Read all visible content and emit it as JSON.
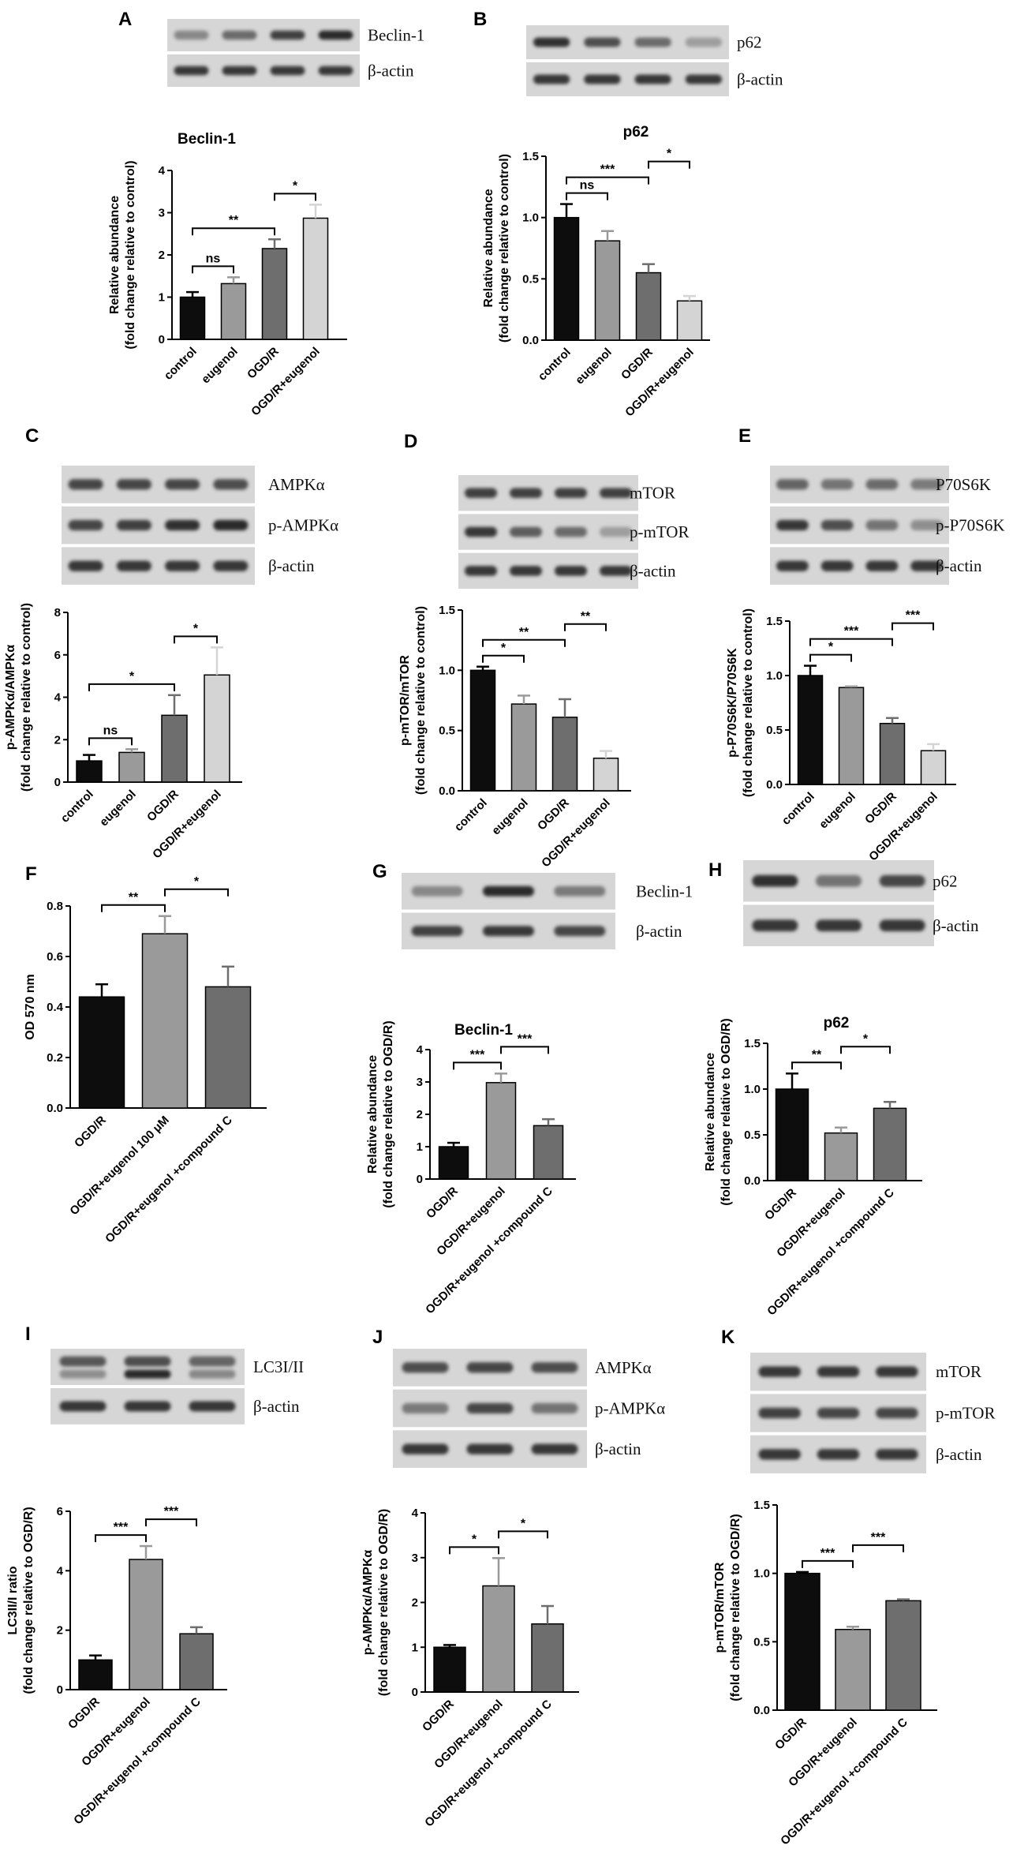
{
  "colors": {
    "bar_black": "#0d0d0d",
    "bar_mid": "#9a9a9a",
    "bar_dark": "#6e6e6e",
    "bar_light": "#d4d4d4",
    "blot_bg": "#d6d6d6",
    "band": "#2a2a2a"
  },
  "chart_data": [
    {
      "id": "A",
      "type": "bar",
      "title": "Beclin-1",
      "ylabel": [
        "Relative abundance",
        "(fold change relative to control)"
      ],
      "ylim": [
        0,
        4
      ],
      "yticks": [
        0,
        1,
        2,
        3,
        4
      ],
      "categories": [
        "control",
        "eugenol",
        "OGD/R",
        "OGD/R+eugenol"
      ],
      "values": [
        1.0,
        1.32,
        2.15,
        2.87
      ],
      "errors": [
        0.12,
        0.15,
        0.22,
        0.32
      ],
      "fills": [
        "black",
        "mid",
        "dark",
        "light"
      ],
      "brackets": [
        {
          "from": 0,
          "to": 1,
          "label": "ns"
        },
        {
          "from": 0,
          "to": 2,
          "label": "**"
        },
        {
          "from": 2,
          "to": 3,
          "label": "*"
        }
      ]
    },
    {
      "id": "B",
      "type": "bar",
      "title": "p62",
      "ylabel": [
        "Relative abundance",
        "(fold change relative to control)"
      ],
      "ylim": [
        0,
        1.5
      ],
      "yticks": [
        0.0,
        0.5,
        1.0,
        1.5
      ],
      "categories": [
        "control",
        "eugenol",
        "OGD/R",
        "OGD/R+eugenol"
      ],
      "values": [
        1.0,
        0.81,
        0.55,
        0.32
      ],
      "errors": [
        0.11,
        0.08,
        0.07,
        0.04
      ],
      "fills": [
        "black",
        "mid",
        "dark",
        "light"
      ],
      "brackets": [
        {
          "from": 0,
          "to": 1,
          "label": "ns"
        },
        {
          "from": 0,
          "to": 2,
          "label": "***"
        },
        {
          "from": 2,
          "to": 3,
          "label": "*"
        }
      ]
    },
    {
      "id": "C",
      "type": "bar",
      "title": "",
      "ylabel": [
        "p-AMPKα/AMPKα",
        "(fold change relative to control)"
      ],
      "ylim": [
        0,
        8
      ],
      "yticks": [
        0,
        2,
        4,
        6,
        8
      ],
      "categories": [
        "control",
        "eugenol",
        "OGD/R",
        "OGD/R+eugenol"
      ],
      "values": [
        1.0,
        1.4,
        3.15,
        5.05
      ],
      "errors": [
        0.28,
        0.15,
        0.95,
        1.3
      ],
      "fills": [
        "black",
        "mid",
        "dark",
        "light"
      ],
      "brackets": [
        {
          "from": 0,
          "to": 1,
          "label": "ns"
        },
        {
          "from": 0,
          "to": 2,
          "label": "*"
        },
        {
          "from": 2,
          "to": 3,
          "label": "*"
        }
      ]
    },
    {
      "id": "D",
      "type": "bar",
      "title": "",
      "ylabel": [
        "p-mTOR/mTOR",
        "(fold change relative to control)"
      ],
      "ylim": [
        0,
        1.5
      ],
      "yticks": [
        0.0,
        0.5,
        1.0,
        1.5
      ],
      "categories": [
        "control",
        "eugenol",
        "OGD/R",
        "OGD/R+eugenol"
      ],
      "values": [
        1.0,
        0.72,
        0.61,
        0.27
      ],
      "errors": [
        0.03,
        0.07,
        0.15,
        0.06
      ],
      "fills": [
        "black",
        "mid",
        "dark",
        "light"
      ],
      "brackets": [
        {
          "from": 0,
          "to": 1,
          "label": "*"
        },
        {
          "from": 0,
          "to": 2,
          "label": "**"
        },
        {
          "from": 2,
          "to": 3,
          "label": "**"
        }
      ]
    },
    {
      "id": "E",
      "type": "bar",
      "title": "",
      "ylabel": [
        "p-P70S6K/P70S6K",
        "(fold change relative to control)"
      ],
      "ylim": [
        0,
        1.5
      ],
      "yticks": [
        0.0,
        0.5,
        1.0,
        1.5
      ],
      "categories": [
        "control",
        "eugenol",
        "OGD/R",
        "OGD/R+eugenol"
      ],
      "values": [
        1.0,
        0.89,
        0.56,
        0.31
      ],
      "errors": [
        0.09,
        0.01,
        0.05,
        0.06
      ],
      "fills": [
        "black",
        "mid",
        "dark",
        "light"
      ],
      "brackets": [
        {
          "from": 0,
          "to": 1,
          "label": "*"
        },
        {
          "from": 0,
          "to": 2,
          "label": "***"
        },
        {
          "from": 2,
          "to": 3,
          "label": "***"
        }
      ]
    },
    {
      "id": "F",
      "type": "bar",
      "title": "",
      "ylabel": [
        "OD 570 nm"
      ],
      "ylim": [
        0,
        0.8
      ],
      "yticks": [
        0.0,
        0.2,
        0.4,
        0.6,
        0.8
      ],
      "categories": [
        "OGD/R",
        "OGD/R+eugenol 100 μM",
        "OGD/R+eugenol +compound C"
      ],
      "values": [
        0.44,
        0.69,
        0.48
      ],
      "errors": [
        0.05,
        0.07,
        0.08
      ],
      "fills": [
        "black",
        "mid",
        "dark"
      ],
      "brackets": [
        {
          "from": 0,
          "to": 1,
          "label": "**"
        },
        {
          "from": 1,
          "to": 2,
          "label": "*"
        }
      ]
    },
    {
      "id": "G",
      "type": "bar",
      "title": "Beclin-1",
      "ylabel": [
        "Relative abundance",
        "(fold change relative to OGD/R)"
      ],
      "ylim": [
        0,
        4
      ],
      "yticks": [
        0,
        1,
        2,
        3,
        4
      ],
      "categories": [
        "OGD/R",
        "OGD/R+eugenol",
        "OGD/R+eugenol +compound C"
      ],
      "values": [
        1.0,
        2.98,
        1.65
      ],
      "errors": [
        0.12,
        0.28,
        0.2
      ],
      "fills": [
        "black",
        "mid",
        "dark"
      ],
      "brackets": [
        {
          "from": 0,
          "to": 1,
          "label": "***"
        },
        {
          "from": 1,
          "to": 2,
          "label": "***"
        }
      ]
    },
    {
      "id": "H",
      "type": "bar",
      "title": "p62",
      "ylabel": [
        "Relative abundance",
        "(fold change relative to OGD/R)"
      ],
      "ylim": [
        0,
        1.5
      ],
      "yticks": [
        0.0,
        0.5,
        1.0,
        1.5
      ],
      "categories": [
        "OGD/R",
        "OGD/R+eugenol",
        "OGD/R+eugenol +compound C"
      ],
      "values": [
        1.0,
        0.52,
        0.79
      ],
      "errors": [
        0.17,
        0.06,
        0.07
      ],
      "fills": [
        "black",
        "mid",
        "dark"
      ],
      "brackets": [
        {
          "from": 0,
          "to": 1,
          "label": "**"
        },
        {
          "from": 1,
          "to": 2,
          "label": "*"
        }
      ]
    },
    {
      "id": "I",
      "type": "bar",
      "title": "",
      "ylabel": [
        "LC3II/I ratio",
        "(fold change relative to OGD/R)"
      ],
      "ylim": [
        0,
        6
      ],
      "yticks": [
        0,
        2,
        4,
        6
      ],
      "categories": [
        "OGD/R",
        "OGD/R+eugenol",
        "OGD/R+eugenol +compound C"
      ],
      "values": [
        1.0,
        4.38,
        1.88
      ],
      "errors": [
        0.15,
        0.45,
        0.22
      ],
      "fills": [
        "black",
        "mid",
        "dark"
      ],
      "brackets": [
        {
          "from": 0,
          "to": 1,
          "label": "***"
        },
        {
          "from": 1,
          "to": 2,
          "label": "***"
        }
      ]
    },
    {
      "id": "J",
      "type": "bar",
      "title": "",
      "ylabel": [
        "p-AMPKα/AMPKα",
        "(fold change relative to OGD/R)"
      ],
      "ylim": [
        0,
        4
      ],
      "yticks": [
        0,
        1,
        2,
        3,
        4
      ],
      "categories": [
        "OGD/R",
        "OGD/R+eugenol",
        "OGD/R+eugenol +compound C"
      ],
      "values": [
        1.0,
        2.37,
        1.52
      ],
      "errors": [
        0.05,
        0.62,
        0.4
      ],
      "fills": [
        "black",
        "mid",
        "dark"
      ],
      "brackets": [
        {
          "from": 0,
          "to": 1,
          "label": "*"
        },
        {
          "from": 1,
          "to": 2,
          "label": "*"
        }
      ]
    },
    {
      "id": "K",
      "type": "bar",
      "title": "",
      "ylabel": [
        "p-mTOR/mTOR",
        "(fold change relative to OGD/R)"
      ],
      "ylim": [
        0,
        1.5
      ],
      "yticks": [
        0.0,
        0.5,
        1.0,
        1.5
      ],
      "categories": [
        "OGD/R",
        "OGD/R+eugenol",
        "OGD/R+eugenol +compound C"
      ],
      "values": [
        1.0,
        0.59,
        0.8
      ],
      "errors": [
        0.01,
        0.02,
        0.01
      ],
      "fills": [
        "black",
        "mid",
        "dark"
      ],
      "brackets": [
        {
          "from": 0,
          "to": 1,
          "label": "***"
        },
        {
          "from": 1,
          "to": 2,
          "label": "***"
        }
      ]
    }
  ],
  "blots": [
    {
      "panel": "A",
      "rows": [
        {
          "label": "Beclin-1",
          "bands": [
            0.35,
            0.55,
            0.85,
            1.0
          ]
        },
        {
          "label": "β-actin",
          "bands": [
            0.9,
            0.9,
            0.9,
            0.9
          ]
        }
      ]
    },
    {
      "panel": "B",
      "rows": [
        {
          "label": "p62",
          "bands": [
            0.95,
            0.75,
            0.55,
            0.2
          ]
        },
        {
          "label": "β-actin",
          "bands": [
            0.9,
            0.9,
            0.9,
            0.9
          ]
        }
      ]
    },
    {
      "panel": "C",
      "rows": [
        {
          "label": "AMPKα",
          "bands": [
            0.8,
            0.8,
            0.8,
            0.75
          ]
        },
        {
          "label": "p-AMPKα",
          "bands": [
            0.8,
            0.85,
            0.95,
            1.0
          ]
        },
        {
          "label": "β-actin",
          "bands": [
            0.9,
            0.9,
            0.9,
            0.9
          ]
        }
      ]
    },
    {
      "panel": "D",
      "rows": [
        {
          "label": "mTOR",
          "bands": [
            0.85,
            0.85,
            0.85,
            0.85
          ]
        },
        {
          "label": "p-mTOR",
          "bands": [
            0.9,
            0.65,
            0.55,
            0.2
          ]
        },
        {
          "label": "β-actin",
          "bands": [
            0.9,
            0.9,
            0.9,
            0.9
          ]
        }
      ]
    },
    {
      "panel": "E",
      "rows": [
        {
          "label": "P70S6K",
          "bands": [
            0.6,
            0.5,
            0.55,
            0.45
          ]
        },
        {
          "label": "p-P70S6K",
          "bands": [
            0.9,
            0.75,
            0.5,
            0.3
          ]
        },
        {
          "label": "β-actin",
          "bands": [
            0.9,
            0.9,
            0.9,
            0.9
          ]
        }
      ]
    },
    {
      "panel": "G",
      "rows": [
        {
          "label": "Beclin-1",
          "bands": [
            0.35,
            1.0,
            0.45
          ]
        },
        {
          "label": "β-actin",
          "bands": [
            0.85,
            0.9,
            0.8
          ]
        }
      ]
    },
    {
      "panel": "H",
      "rows": [
        {
          "label": "p62",
          "bands": [
            0.95,
            0.5,
            0.8
          ]
        },
        {
          "label": "β-actin",
          "bands": [
            0.9,
            0.9,
            0.9
          ]
        }
      ]
    },
    {
      "panel": "I",
      "rows": [
        {
          "label": "LC3I/II",
          "bands": [
            0.7,
            0.75,
            0.6
          ],
          "second": [
            0.3,
            1.0,
            0.35
          ]
        },
        {
          "label": "β-actin",
          "bands": [
            0.9,
            0.9,
            0.9
          ]
        }
      ]
    },
    {
      "panel": "J",
      "rows": [
        {
          "label": "AMPKα",
          "bands": [
            0.75,
            0.8,
            0.75
          ]
        },
        {
          "label": "p-AMPKα",
          "bands": [
            0.45,
            0.8,
            0.5
          ]
        },
        {
          "label": "β-actin",
          "bands": [
            0.9,
            0.9,
            0.9
          ]
        }
      ]
    },
    {
      "panel": "K",
      "rows": [
        {
          "label": "mTOR",
          "bands": [
            0.9,
            0.9,
            0.9
          ]
        },
        {
          "label": "p-mTOR",
          "bands": [
            0.85,
            0.8,
            0.8
          ]
        },
        {
          "label": "β-actin",
          "bands": [
            0.9,
            0.9,
            0.9
          ]
        }
      ]
    }
  ]
}
